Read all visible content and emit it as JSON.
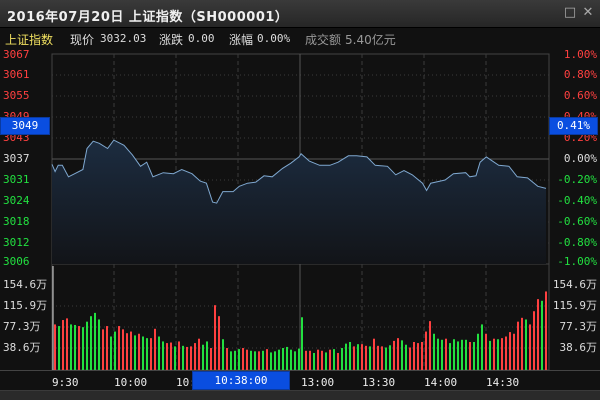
{
  "window": {
    "title": "2016年07月20日 上证指数（SH000001）",
    "restore_icon": "□",
    "close_icon": "✕"
  },
  "info": {
    "name": "上证指数",
    "price_label": "现价",
    "price": "3032.03",
    "change_label": "涨跌",
    "change": "0.00",
    "pct_label": "涨幅",
    "pct": "0.00%",
    "turnover_label": "成交额",
    "turnover": "5.40亿元"
  },
  "colors": {
    "up": "#ff4040",
    "down": "#22e040",
    "line": "#7fa8d0",
    "crosshair_box": "#0a4ee0"
  },
  "price_axis": {
    "labels": [
      "3067",
      "3061",
      "3055",
      "3049",
      "3043",
      "3037",
      "3031",
      "3024",
      "3018",
      "3012",
      "3006"
    ],
    "pct_labels": [
      "1.00%",
      "0.80%",
      "0.60%",
      "0.40%",
      "0.20%",
      "0.00%",
      "-0.20%",
      "-0.40%",
      "-0.60%",
      "-0.80%",
      "-1.00%"
    ]
  },
  "volume_axis": {
    "labels": [
      "154.6万",
      "115.9万",
      "77.3万",
      "38.6万"
    ]
  },
  "time_axis": {
    "labels": [
      "9:30",
      "10:00",
      "10:30",
      "13:00",
      "13:30",
      "14:00",
      "14:30"
    ]
  },
  "crosshair": {
    "price": "3049",
    "pct": "0.41%",
    "time": "10:38:00"
  },
  "chart_data": {
    "type": "line",
    "ylim_pct": [
      -1.0,
      1.0
    ],
    "x_minutes_range": [
      0,
      240
    ],
    "price_series": {
      "x": [
        0,
        1.5,
        3,
        5,
        8,
        12,
        15,
        17,
        20,
        23,
        27,
        30,
        35,
        39,
        43,
        46,
        49,
        54,
        59,
        63,
        68,
        72,
        75,
        78,
        80,
        83,
        88,
        91,
        95,
        99,
        103,
        107,
        112,
        116,
        120,
        121,
        125,
        130,
        135,
        139,
        144,
        148,
        153,
        157,
        163,
        167,
        171,
        175,
        180,
        182,
        184,
        191,
        195,
        201,
        203,
        206,
        208,
        211,
        217,
        222,
        226,
        231,
        236,
        240
      ],
      "pct": [
        -0.05,
        -0.12,
        -0.06,
        -0.06,
        -0.17,
        -0.13,
        -0.1,
        0.1,
        0.17,
        0.15,
        0.1,
        0.18,
        0.13,
        0.04,
        -0.07,
        -0.03,
        -0.17,
        -0.13,
        -0.14,
        -0.1,
        -0.14,
        -0.21,
        -0.23,
        -0.41,
        -0.42,
        -0.31,
        -0.31,
        -0.26,
        -0.23,
        -0.22,
        -0.16,
        -0.17,
        -0.09,
        -0.04,
        0.02,
        0.05,
        -0.02,
        -0.06,
        -0.06,
        -0.03,
        0.03,
        0.03,
        0.02,
        -0.06,
        -0.07,
        -0.15,
        -0.11,
        -0.15,
        -0.23,
        -0.3,
        -0.23,
        -0.2,
        -0.14,
        -0.13,
        -0.17,
        -0.16,
        -0.03,
        0.02,
        -0.06,
        -0.07,
        -0.17,
        -0.18,
        -0.26,
        -0.28
      ]
    },
    "volume_ylim_wan": [
      0,
      193
    ],
    "volume_morning": {
      "values": [
        83,
        80,
        91,
        94,
        83,
        82,
        80,
        78,
        88,
        98,
        104,
        92,
        74,
        80,
        61,
        70,
        80,
        74,
        67,
        70,
        63,
        66,
        61,
        58,
        58,
        75,
        61,
        52,
        49,
        50,
        43,
        52,
        44,
        42,
        43,
        49,
        57,
        46,
        52,
        40,
        118,
        98,
        56,
        40,
        34,
        35,
        38,
        40,
        37,
        35,
        34,
        34,
        35,
        38,
        32,
        34,
        37,
        40,
        42,
        37,
        34,
        39
      ],
      "up": [
        "d",
        "u",
        "d",
        "d",
        "u",
        "u",
        "d",
        "u",
        "u",
        "u",
        "u",
        "u",
        "d",
        "d",
        "u",
        "u",
        "d",
        "d",
        "d",
        "d",
        "u",
        "d",
        "u",
        "u",
        "d",
        "d",
        "u",
        "u",
        "d",
        "d",
        "u",
        "d",
        "u",
        "d",
        "d",
        "d",
        "d",
        "u",
        "u",
        "d",
        "d",
        "d",
        "u",
        "d",
        "u",
        "u",
        "u",
        "d",
        "d",
        "u",
        "u",
        "d",
        "u",
        "d",
        "u",
        "u",
        "u",
        "u",
        "u",
        "u",
        "u",
        "u"
      ]
    },
    "volume_afternoon": {
      "values": [
        96,
        35,
        35,
        31,
        37,
        35,
        32,
        37,
        38,
        31,
        40,
        48,
        51,
        43,
        47,
        47,
        44,
        43,
        57,
        44,
        43,
        41,
        45,
        53,
        58,
        54,
        46,
        41,
        51,
        49,
        51,
        70,
        89,
        66,
        57,
        55,
        57,
        49,
        56,
        52,
        55,
        55,
        51,
        51,
        66,
        83,
        66,
        53,
        57,
        56,
        58,
        61,
        69,
        66,
        88,
        95,
        92,
        83,
        107,
        129,
        126,
        143
      ],
      "up": [
        "u",
        "d",
        "d",
        "u",
        "d",
        "d",
        "u",
        "d",
        "u",
        "d",
        "u",
        "u",
        "u",
        "d",
        "u",
        "d",
        "d",
        "u",
        "d",
        "d",
        "d",
        "u",
        "u",
        "d",
        "d",
        "u",
        "u",
        "d",
        "d",
        "d",
        "d",
        "d",
        "d",
        "u",
        "u",
        "u",
        "d",
        "u",
        "u",
        "u",
        "u",
        "u",
        "d",
        "u",
        "u",
        "u",
        "d",
        "u",
        "d",
        "u",
        "d",
        "d",
        "d",
        "d",
        "d",
        "d",
        "u",
        "d",
        "d",
        "d",
        "u",
        "d"
      ]
    }
  }
}
